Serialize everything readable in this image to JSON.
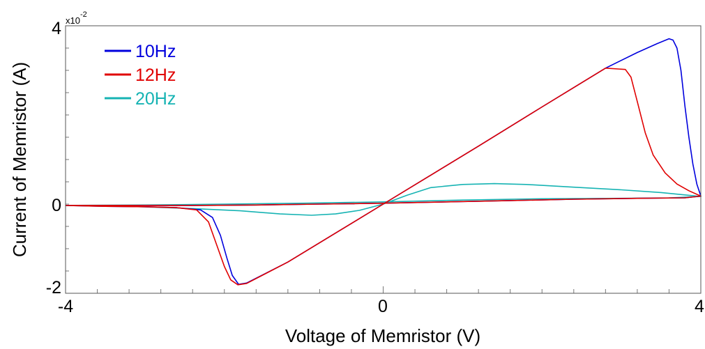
{
  "chart_data": {
    "type": "line",
    "xlabel": "Voltage of Memristor (V)",
    "ylabel": "Current of Memristor (A)",
    "y_multiplier_base": "x10",
    "y_multiplier_exp": "-2",
    "xlim": [
      -4,
      4
    ],
    "ylim": [
      -2,
      4
    ],
    "x_ticks": [
      "-4",
      "0",
      "4"
    ],
    "y_ticks": [
      "-2",
      "0",
      "4"
    ],
    "legend_position": "top-left",
    "grid": false,
    "series": [
      {
        "name": "10Hz",
        "color": "#0000dd",
        "points": [
          [
            -4,
            -0.03
          ],
          [
            -3.5,
            -0.05
          ],
          [
            -3,
            -0.06
          ],
          [
            -2.6,
            -0.08
          ],
          [
            -2.3,
            -0.13
          ],
          [
            -2.15,
            -0.3
          ],
          [
            -2.05,
            -0.7
          ],
          [
            -1.97,
            -1.2
          ],
          [
            -1.9,
            -1.6
          ],
          [
            -1.82,
            -1.8
          ],
          [
            -1.72,
            -1.77
          ],
          [
            -1.2,
            -1.3
          ],
          [
            -0.6,
            -0.65
          ],
          [
            0,
            0
          ],
          [
            0.6,
            0.65
          ],
          [
            1.2,
            1.3
          ],
          [
            2,
            2.18
          ],
          [
            2.8,
            3.05
          ],
          [
            3.2,
            3.4
          ],
          [
            3.45,
            3.6
          ],
          [
            3.6,
            3.71
          ],
          [
            3.65,
            3.68
          ],
          [
            3.7,
            3.5
          ],
          [
            3.75,
            3.0
          ],
          [
            3.8,
            2.2
          ],
          [
            3.85,
            1.5
          ],
          [
            3.9,
            0.9
          ],
          [
            3.95,
            0.45
          ],
          [
            4,
            0.18
          ],
          [
            3.8,
            0.14
          ],
          [
            3.2,
            0.13
          ],
          [
            2.4,
            0.11
          ],
          [
            1.6,
            0.08
          ],
          [
            0.8,
            0.05
          ],
          [
            0,
            0.02
          ],
          [
            -0.8,
            0
          ],
          [
            -1.6,
            -0.02
          ],
          [
            -2.4,
            -0.03
          ],
          [
            -3.2,
            -0.03
          ],
          [
            -4,
            -0.03
          ]
        ]
      },
      {
        "name": "12Hz",
        "color": "#e00000",
        "points": [
          [
            -4,
            -0.03
          ],
          [
            -3.5,
            -0.05
          ],
          [
            -3,
            -0.06
          ],
          [
            -2.6,
            -0.08
          ],
          [
            -2.35,
            -0.13
          ],
          [
            -2.2,
            -0.4
          ],
          [
            -2.1,
            -0.9
          ],
          [
            -2.0,
            -1.4
          ],
          [
            -1.92,
            -1.7
          ],
          [
            -1.83,
            -1.81
          ],
          [
            -1.72,
            -1.78
          ],
          [
            -1.2,
            -1.3
          ],
          [
            -0.6,
            -0.65
          ],
          [
            0,
            0
          ],
          [
            0.6,
            0.65
          ],
          [
            1.2,
            1.3
          ],
          [
            2,
            2.18
          ],
          [
            2.8,
            3.05
          ],
          [
            3.05,
            3.02
          ],
          [
            3.12,
            2.85
          ],
          [
            3.2,
            2.3
          ],
          [
            3.3,
            1.6
          ],
          [
            3.4,
            1.1
          ],
          [
            3.55,
            0.7
          ],
          [
            3.7,
            0.45
          ],
          [
            3.85,
            0.3
          ],
          [
            4,
            0.18
          ],
          [
            3.8,
            0.14
          ],
          [
            3.2,
            0.13
          ],
          [
            2.4,
            0.11
          ],
          [
            1.6,
            0.08
          ],
          [
            0.8,
            0.05
          ],
          [
            0,
            0.02
          ],
          [
            -0.8,
            0
          ],
          [
            -1.6,
            -0.02
          ],
          [
            -2.4,
            -0.03
          ],
          [
            -3.2,
            -0.03
          ],
          [
            -4,
            -0.03
          ]
        ]
      },
      {
        "name": "20Hz",
        "color": "#16b3b3",
        "points": [
          [
            -4,
            -0.03
          ],
          [
            -3.2,
            -0.05
          ],
          [
            -2.4,
            -0.1
          ],
          [
            -1.8,
            -0.15
          ],
          [
            -1.3,
            -0.22
          ],
          [
            -0.9,
            -0.25
          ],
          [
            -0.6,
            -0.22
          ],
          [
            -0.3,
            -0.14
          ],
          [
            0,
            0
          ],
          [
            0.3,
            0.2
          ],
          [
            0.6,
            0.37
          ],
          [
            1.0,
            0.44
          ],
          [
            1.4,
            0.46
          ],
          [
            1.8,
            0.44
          ],
          [
            2.4,
            0.38
          ],
          [
            3.0,
            0.32
          ],
          [
            3.5,
            0.26
          ],
          [
            4,
            0.17
          ],
          [
            3.6,
            0.14
          ],
          [
            3.0,
            0.13
          ],
          [
            2.0,
            0.12
          ],
          [
            1.0,
            0.09
          ],
          [
            0,
            0.05
          ],
          [
            -1.0,
            0.02
          ],
          [
            -2.0,
            0.0
          ],
          [
            -3.0,
            -0.02
          ],
          [
            -4,
            -0.03
          ]
        ]
      }
    ]
  }
}
